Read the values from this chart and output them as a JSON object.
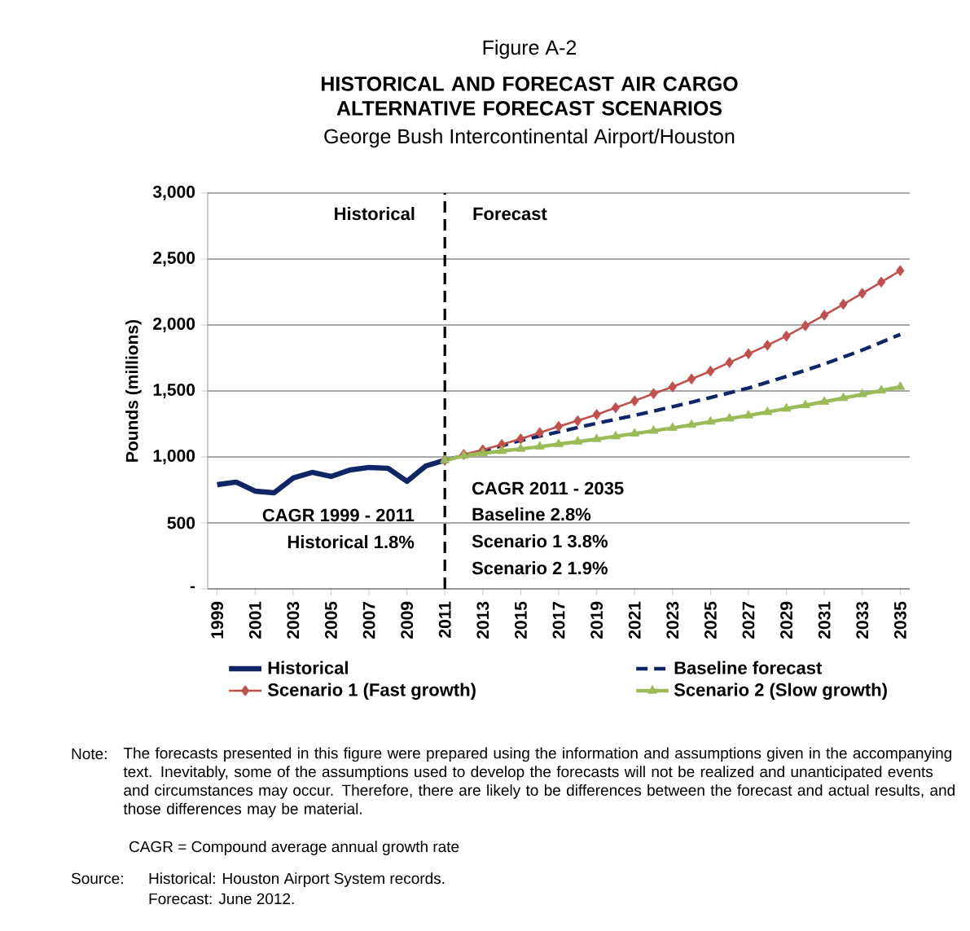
{
  "chart_data": {
    "type": "line",
    "title": "HISTORICAL AND FORECAST AIR CARGO ALTERNATIVE FORECAST SCENARIOS",
    "subtitle": "George Bush Intercontinental Airport/Houston",
    "ylabel": "Pounds (millions)",
    "xlim": [
      1998.5,
      2035.5
    ],
    "xticks": [
      1999,
      2001,
      2003,
      2005,
      2007,
      2009,
      2011,
      2013,
      2015,
      2017,
      2019,
      2021,
      2023,
      2025,
      2027,
      2029,
      2031,
      2033,
      2035
    ],
    "ylim": [
      0,
      3000
    ],
    "yticks": [
      {
        "value": 0,
        "label": "-"
      },
      {
        "value": 500,
        "label": "500"
      },
      {
        "value": 1000,
        "label": "1,000"
      },
      {
        "value": 1500,
        "label": "1,500"
      },
      {
        "value": 2000,
        "label": "2,000"
      },
      {
        "value": 2500,
        "label": "2,500"
      },
      {
        "value": 3000,
        "label": "3,000"
      }
    ],
    "grid": "y",
    "legend": "bottom",
    "series": [
      {
        "name": "Historical",
        "color": "#0f2565",
        "marker": "none",
        "line_style": "solid",
        "x": [
          1999,
          2000,
          2001,
          2002,
          2003,
          2004,
          2005,
          2006,
          2007,
          2008,
          2009,
          2010,
          2011
        ],
        "values": [
          790,
          809,
          741,
          728,
          840,
          883,
          852,
          901,
          920,
          914,
          815,
          932,
          975
        ]
      },
      {
        "name": "Baseline forecast",
        "color": "#0f2565",
        "marker": "none",
        "line_style": "dashed",
        "x": [
          2011,
          2013,
          2015,
          2017,
          2019,
          2021,
          2023,
          2025,
          2027,
          2029,
          2031,
          2033,
          2035
        ],
        "values": [
          975,
          1045,
          1125,
          1190,
          1255,
          1315,
          1380,
          1450,
          1522,
          1610,
          1704,
          1810,
          1928
        ]
      },
      {
        "name": "Scenario 1 (Fast growth)",
        "color": "#c0504d",
        "marker": "diamond",
        "line_style": "solid",
        "x": [
          2011,
          2012,
          2013,
          2014,
          2015,
          2016,
          2017,
          2018,
          2019,
          2020,
          2021,
          2022,
          2023,
          2024,
          2025,
          2026,
          2027,
          2028,
          2029,
          2030,
          2031,
          2032,
          2033,
          2034,
          2035
        ],
        "values": [
          975,
          1019,
          1054,
          1094,
          1137,
          1184,
          1231,
          1274,
          1321,
          1373,
          1425,
          1480,
          1531,
          1591,
          1650,
          1716,
          1782,
          1846,
          1916,
          1994,
          2075,
          2157,
          2240,
          2325,
          2412
        ]
      },
      {
        "name": "Scenario 2 (Slow growth)",
        "color": "#9bbb59",
        "marker": "triangle",
        "line_style": "solid",
        "x": [
          2011,
          2012,
          2013,
          2014,
          2015,
          2016,
          2017,
          2018,
          2019,
          2020,
          2021,
          2022,
          2023,
          2024,
          2025,
          2026,
          2027,
          2028,
          2029,
          2030,
          2031,
          2032,
          2033,
          2034,
          2035
        ],
        "values": [
          975,
          1009,
          1028,
          1045,
          1061,
          1078,
          1097,
          1116,
          1135,
          1156,
          1177,
          1198,
          1220,
          1243,
          1267,
          1291,
          1314,
          1340,
          1366,
          1392,
          1418,
          1446,
          1475,
          1503,
          1531
        ]
      }
    ],
    "ref_lines": [
      {
        "axis": "x",
        "value": 2011,
        "color": "#000000",
        "line_style": "dashed"
      }
    ],
    "annotations": [
      "Figure A-2",
      "Historical",
      "Forecast",
      "CAGR 1999 - 2011",
      "Historical 1.8%",
      "CAGR 2011 - 2035",
      "Baseline 2.8%",
      "Scenario 1 3.8%",
      "Scenario 2 1.9%",
      "Note:",
      "The forecasts presented in this figure were prepared using the information and assumptions given in the accompanying text. Inevitably, some of the assumptions used to develop the forecasts will not be realized and unanticipated events and circumstances may occur. Therefore, there are likely to be differences between the forecast and actual results, and those differences may be material.",
      "CAGR = Compound average annual growth rate",
      "Source:",
      "Historical: Houston Airport System records.",
      "Forecast: June 2012."
    ]
  }
}
